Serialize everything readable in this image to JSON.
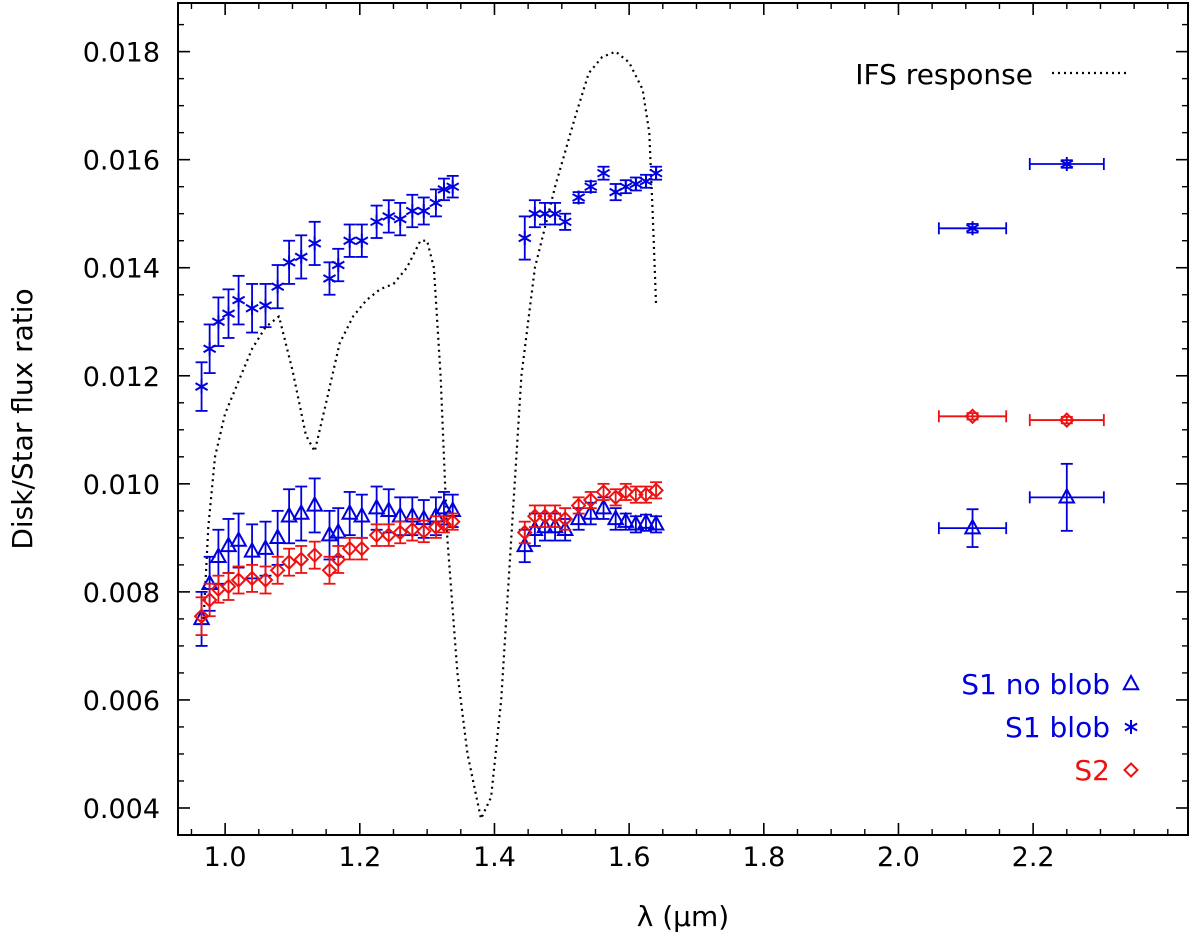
{
  "chart_data": {
    "type": "scatter",
    "title": "",
    "xlabel": "λ (μm)",
    "ylabel": "Disk/Star flux ratio",
    "xlim": [
      0.93,
      2.43
    ],
    "ylim": [
      0.0035,
      0.0189
    ],
    "xticks": [
      1.0,
      1.2,
      1.4,
      1.6,
      1.8,
      2.0,
      2.2
    ],
    "xtick_labels": [
      "1.0",
      "1.2",
      "1.4",
      "1.6",
      "1.8",
      "2.0",
      "2.2"
    ],
    "yticks": [
      0.004,
      0.006,
      0.008,
      0.01,
      0.012,
      0.014,
      0.016,
      0.018
    ],
    "ytick_labels": [
      "0.004",
      "0.006",
      "0.008",
      "0.010",
      "0.012",
      "0.014",
      "0.016",
      "0.018"
    ],
    "line_series": [
      {
        "name": "IFS response",
        "label": "IFS response",
        "style": "dotted",
        "color": "#000000",
        "points": [
          [
            0.968,
            0.0075
          ],
          [
            0.975,
            0.0092
          ],
          [
            0.985,
            0.0105
          ],
          [
            1.0,
            0.0113
          ],
          [
            1.02,
            0.0119
          ],
          [
            1.04,
            0.0125
          ],
          [
            1.06,
            0.0129
          ],
          [
            1.08,
            0.0131
          ],
          [
            1.1,
            0.0121
          ],
          [
            1.12,
            0.0109
          ],
          [
            1.133,
            0.0106
          ],
          [
            1.15,
            0.0115
          ],
          [
            1.17,
            0.0126
          ],
          [
            1.19,
            0.0131
          ],
          [
            1.21,
            0.0134
          ],
          [
            1.23,
            0.0136
          ],
          [
            1.25,
            0.0137
          ],
          [
            1.27,
            0.014
          ],
          [
            1.29,
            0.0145
          ],
          [
            1.3,
            0.0145
          ],
          [
            1.31,
            0.014
          ],
          [
            1.32,
            0.012
          ],
          [
            1.33,
            0.009
          ],
          [
            1.345,
            0.0065
          ],
          [
            1.36,
            0.005
          ],
          [
            1.38,
            0.0038
          ],
          [
            1.395,
            0.0042
          ],
          [
            1.41,
            0.006
          ],
          [
            1.425,
            0.009
          ],
          [
            1.44,
            0.012
          ],
          [
            1.46,
            0.014
          ],
          [
            1.49,
            0.0155
          ],
          [
            1.52,
            0.0168
          ],
          [
            1.54,
            0.0176
          ],
          [
            1.56,
            0.0179
          ],
          [
            1.58,
            0.018
          ],
          [
            1.6,
            0.0178
          ],
          [
            1.62,
            0.0173
          ],
          [
            1.63,
            0.0165
          ],
          [
            1.635,
            0.015
          ],
          [
            1.64,
            0.0133
          ]
        ]
      }
    ],
    "series": [
      {
        "name": "S1 blob",
        "label": "S1 blob",
        "marker": "asterisk",
        "color": "#0000dd",
        "points": [
          {
            "x": 0.965,
            "y": 0.0118,
            "yerr": 0.00045
          },
          {
            "x": 0.977,
            "y": 0.0125,
            "yerr": 0.00045
          },
          {
            "x": 0.99,
            "y": 0.013,
            "yerr": 0.00045
          },
          {
            "x": 1.005,
            "y": 0.01315,
            "yerr": 0.00045
          },
          {
            "x": 1.02,
            "y": 0.0134,
            "yerr": 0.00045
          },
          {
            "x": 1.04,
            "y": 0.01325,
            "yerr": 0.00045
          },
          {
            "x": 1.06,
            "y": 0.0133,
            "yerr": 0.0004
          },
          {
            "x": 1.078,
            "y": 0.01365,
            "yerr": 0.0004
          },
          {
            "x": 1.095,
            "y": 0.0141,
            "yerr": 0.0004
          },
          {
            "x": 1.113,
            "y": 0.0142,
            "yerr": 0.0004
          },
          {
            "x": 1.133,
            "y": 0.01445,
            "yerr": 0.0004
          },
          {
            "x": 1.155,
            "y": 0.0138,
            "yerr": 0.0003
          },
          {
            "x": 1.168,
            "y": 0.01405,
            "yerr": 0.0003
          },
          {
            "x": 1.185,
            "y": 0.0145,
            "yerr": 0.0003
          },
          {
            "x": 1.203,
            "y": 0.0145,
            "yerr": 0.0003
          },
          {
            "x": 1.225,
            "y": 0.01485,
            "yerr": 0.0003
          },
          {
            "x": 1.243,
            "y": 0.01495,
            "yerr": 0.0003
          },
          {
            "x": 1.26,
            "y": 0.0149,
            "yerr": 0.0003
          },
          {
            "x": 1.278,
            "y": 0.01505,
            "yerr": 0.0003
          },
          {
            "x": 1.295,
            "y": 0.01505,
            "yerr": 0.00025
          },
          {
            "x": 1.313,
            "y": 0.0152,
            "yerr": 0.00025
          },
          {
            "x": 1.325,
            "y": 0.01545,
            "yerr": 0.0002
          },
          {
            "x": 1.338,
            "y": 0.0155,
            "yerr": 0.0002
          },
          {
            "x": 1.445,
            "y": 0.01455,
            "yerr": 0.0004
          },
          {
            "x": 1.46,
            "y": 0.015,
            "yerr": 0.00025
          },
          {
            "x": 1.475,
            "y": 0.015,
            "yerr": 0.0002
          },
          {
            "x": 1.49,
            "y": 0.015,
            "yerr": 0.0002
          },
          {
            "x": 1.505,
            "y": 0.01485,
            "yerr": 0.00015
          },
          {
            "x": 1.525,
            "y": 0.0153,
            "yerr": 0.0001
          },
          {
            "x": 1.543,
            "y": 0.0155,
            "yerr": 0.0001
          },
          {
            "x": 1.562,
            "y": 0.01575,
            "yerr": 0.00012
          },
          {
            "x": 1.58,
            "y": 0.0154,
            "yerr": 0.00015
          },
          {
            "x": 1.595,
            "y": 0.0155,
            "yerr": 0.00012
          },
          {
            "x": 1.61,
            "y": 0.01555,
            "yerr": 0.00012
          },
          {
            "x": 1.625,
            "y": 0.0156,
            "yerr": 0.00012
          },
          {
            "x": 1.64,
            "y": 0.01575,
            "yerr": 0.00012
          },
          {
            "x": 2.11,
            "y": 0.01473,
            "yerr": 8e-05,
            "xerr": 0.05
          },
          {
            "x": 2.25,
            "y": 0.01592,
            "yerr": 7e-05,
            "xerr": 0.055
          }
        ]
      },
      {
        "name": "S1 no blob",
        "label": "S1 no blob",
        "marker": "triangle",
        "color": "#0000dd",
        "points": [
          {
            "x": 0.965,
            "y": 0.0075,
            "yerr": 0.0005
          },
          {
            "x": 0.977,
            "y": 0.00815,
            "yerr": 0.0005
          },
          {
            "x": 0.99,
            "y": 0.00865,
            "yerr": 0.0005
          },
          {
            "x": 1.005,
            "y": 0.00885,
            "yerr": 0.0005
          },
          {
            "x": 1.02,
            "y": 0.00895,
            "yerr": 0.0005
          },
          {
            "x": 1.04,
            "y": 0.00875,
            "yerr": 0.0005
          },
          {
            "x": 1.06,
            "y": 0.0088,
            "yerr": 0.0005
          },
          {
            "x": 1.078,
            "y": 0.009,
            "yerr": 0.0005
          },
          {
            "x": 1.095,
            "y": 0.0094,
            "yerr": 0.0005
          },
          {
            "x": 1.113,
            "y": 0.00945,
            "yerr": 0.0005
          },
          {
            "x": 1.133,
            "y": 0.0096,
            "yerr": 0.0005
          },
          {
            "x": 1.155,
            "y": 0.00905,
            "yerr": 0.00045
          },
          {
            "x": 1.168,
            "y": 0.0091,
            "yerr": 0.00045
          },
          {
            "x": 1.185,
            "y": 0.00945,
            "yerr": 0.0004
          },
          {
            "x": 1.203,
            "y": 0.0094,
            "yerr": 0.0004
          },
          {
            "x": 1.225,
            "y": 0.00955,
            "yerr": 0.0004
          },
          {
            "x": 1.243,
            "y": 0.0095,
            "yerr": 0.0004
          },
          {
            "x": 1.26,
            "y": 0.0094,
            "yerr": 0.00035
          },
          {
            "x": 1.278,
            "y": 0.0094,
            "yerr": 0.00035
          },
          {
            "x": 1.295,
            "y": 0.00935,
            "yerr": 0.00035
          },
          {
            "x": 1.313,
            "y": 0.0094,
            "yerr": 0.00035
          },
          {
            "x": 1.325,
            "y": 0.00955,
            "yerr": 0.0003
          },
          {
            "x": 1.338,
            "y": 0.0095,
            "yerr": 0.0003
          },
          {
            "x": 1.445,
            "y": 0.00885,
            "yerr": 0.0003
          },
          {
            "x": 1.46,
            "y": 0.00915,
            "yerr": 0.0003
          },
          {
            "x": 1.475,
            "y": 0.0092,
            "yerr": 0.00025
          },
          {
            "x": 1.49,
            "y": 0.0092,
            "yerr": 0.00025
          },
          {
            "x": 1.505,
            "y": 0.00915,
            "yerr": 0.0002
          },
          {
            "x": 1.525,
            "y": 0.00935,
            "yerr": 0.0002
          },
          {
            "x": 1.543,
            "y": 0.00945,
            "yerr": 0.0002
          },
          {
            "x": 1.562,
            "y": 0.00955,
            "yerr": 0.0002
          },
          {
            "x": 1.58,
            "y": 0.00935,
            "yerr": 0.0002
          },
          {
            "x": 1.595,
            "y": 0.0093,
            "yerr": 0.00015
          },
          {
            "x": 1.61,
            "y": 0.00925,
            "yerr": 0.00015
          },
          {
            "x": 1.625,
            "y": 0.00928,
            "yerr": 0.00015
          },
          {
            "x": 1.64,
            "y": 0.00925,
            "yerr": 0.00015
          },
          {
            "x": 2.11,
            "y": 0.00918,
            "yerr": 0.00035,
            "xerr": 0.05
          },
          {
            "x": 2.25,
            "y": 0.00975,
            "yerr": 0.00062,
            "xerr": 0.055
          }
        ]
      },
      {
        "name": "S2",
        "label": "S2",
        "marker": "diamond",
        "color": "#ee1111",
        "points": [
          {
            "x": 0.965,
            "y": 0.00755,
            "yerr": 0.00035
          },
          {
            "x": 0.977,
            "y": 0.00785,
            "yerr": 0.0003
          },
          {
            "x": 0.99,
            "y": 0.00805,
            "yerr": 0.00025
          },
          {
            "x": 1.005,
            "y": 0.0081,
            "yerr": 0.00025
          },
          {
            "x": 1.02,
            "y": 0.00822,
            "yerr": 0.00025
          },
          {
            "x": 1.04,
            "y": 0.00825,
            "yerr": 0.00025
          },
          {
            "x": 1.06,
            "y": 0.00822,
            "yerr": 0.00025
          },
          {
            "x": 1.078,
            "y": 0.0084,
            "yerr": 0.00025
          },
          {
            "x": 1.095,
            "y": 0.00855,
            "yerr": 0.00025
          },
          {
            "x": 1.113,
            "y": 0.0086,
            "yerr": 0.00025
          },
          {
            "x": 1.133,
            "y": 0.00868,
            "yerr": 0.00025
          },
          {
            "x": 1.155,
            "y": 0.0084,
            "yerr": 0.00025
          },
          {
            "x": 1.168,
            "y": 0.0086,
            "yerr": 0.00025
          },
          {
            "x": 1.185,
            "y": 0.0088,
            "yerr": 0.0002
          },
          {
            "x": 1.203,
            "y": 0.0088,
            "yerr": 0.0002
          },
          {
            "x": 1.225,
            "y": 0.00905,
            "yerr": 0.0002
          },
          {
            "x": 1.243,
            "y": 0.00905,
            "yerr": 0.0002
          },
          {
            "x": 1.26,
            "y": 0.0091,
            "yerr": 0.0002
          },
          {
            "x": 1.278,
            "y": 0.00915,
            "yerr": 0.0002
          },
          {
            "x": 1.295,
            "y": 0.00912,
            "yerr": 0.0002
          },
          {
            "x": 1.313,
            "y": 0.0092,
            "yerr": 0.0002
          },
          {
            "x": 1.325,
            "y": 0.00925,
            "yerr": 0.00015
          },
          {
            "x": 1.338,
            "y": 0.0093,
            "yerr": 0.00015
          },
          {
            "x": 1.445,
            "y": 0.0091,
            "yerr": 0.0002
          },
          {
            "x": 1.46,
            "y": 0.0094,
            "yerr": 0.0002
          },
          {
            "x": 1.475,
            "y": 0.0094,
            "yerr": 0.0002
          },
          {
            "x": 1.49,
            "y": 0.0094,
            "yerr": 0.0002
          },
          {
            "x": 1.505,
            "y": 0.00935,
            "yerr": 0.0002
          },
          {
            "x": 1.525,
            "y": 0.0096,
            "yerr": 0.00015
          },
          {
            "x": 1.543,
            "y": 0.0097,
            "yerr": 0.00015
          },
          {
            "x": 1.562,
            "y": 0.00985,
            "yerr": 0.00015
          },
          {
            "x": 1.58,
            "y": 0.00975,
            "yerr": 0.00015
          },
          {
            "x": 1.595,
            "y": 0.00985,
            "yerr": 0.00015
          },
          {
            "x": 1.61,
            "y": 0.0098,
            "yerr": 0.00015
          },
          {
            "x": 1.625,
            "y": 0.0098,
            "yerr": 0.00015
          },
          {
            "x": 1.64,
            "y": 0.00988,
            "yerr": 0.00015
          },
          {
            "x": 2.11,
            "y": 0.01125,
            "yerr": 6e-05,
            "xerr": 0.05
          },
          {
            "x": 2.25,
            "y": 0.01118,
            "yerr": 6e-05,
            "xerr": 0.055
          }
        ]
      }
    ],
    "legend": {
      "placement": "bottom-right",
      "entries": [
        {
          "series": "S1 no blob",
          "label": "S1 no blob",
          "marker": "triangle",
          "color": "#0000dd"
        },
        {
          "series": "S1 blob",
          "label": "S1 blob",
          "marker": "asterisk",
          "color": "#0000dd"
        },
        {
          "series": "S2",
          "label": "S2",
          "marker": "diamond",
          "color": "#ee1111"
        }
      ],
      "top_right_label": "IFS response"
    }
  }
}
